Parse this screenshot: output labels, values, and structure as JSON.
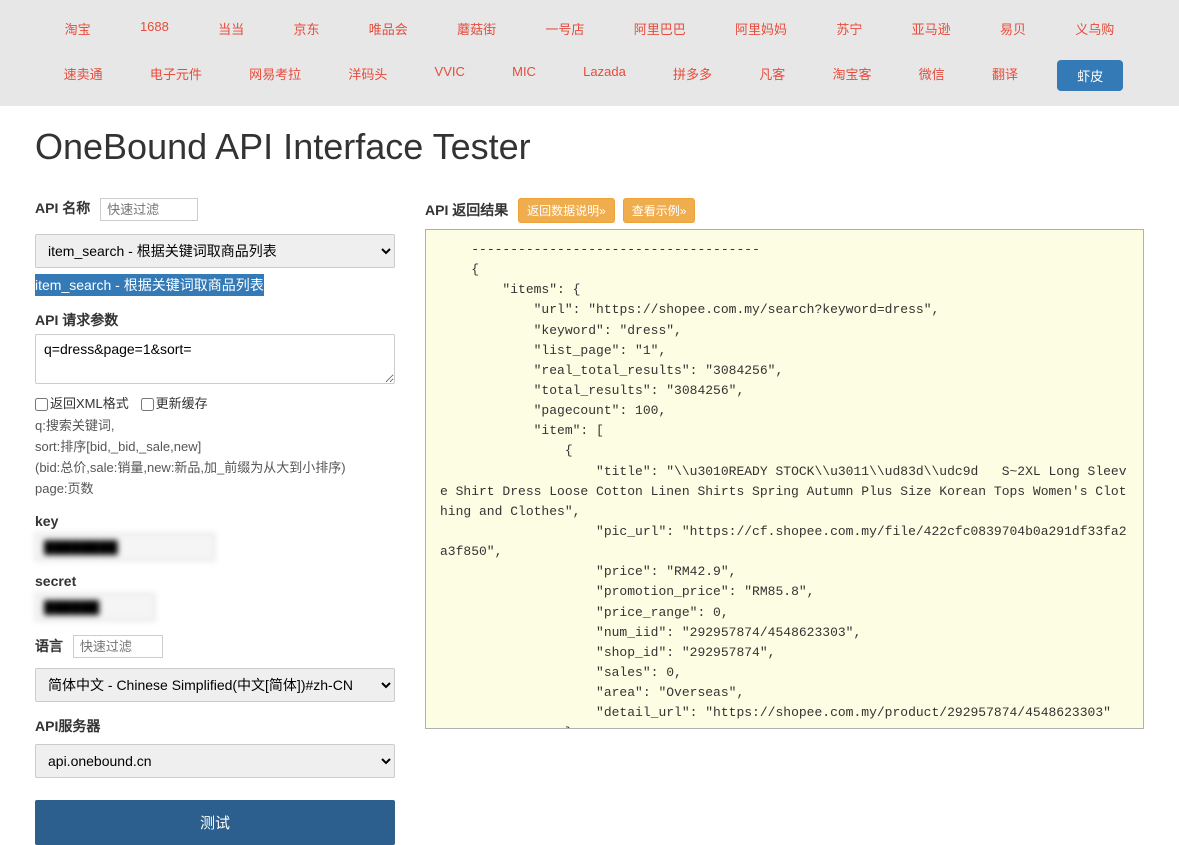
{
  "nav": {
    "row1": [
      "淘宝",
      "1688",
      "当当",
      "京东",
      "唯品会",
      "蘑菇街",
      "一号店",
      "阿里巴巴",
      "阿里妈妈",
      "苏宁",
      "亚马逊",
      "易贝",
      "义乌购"
    ],
    "row2": [
      "速卖通",
      "电子元件",
      "网易考拉",
      "洋码头",
      "VVIC",
      "MIC",
      "Lazada",
      "拼多多",
      "凡客",
      "淘宝客",
      "微信",
      "翻译",
      "虾皮"
    ],
    "active_index": 12
  },
  "title": "OneBound API Interface Tester",
  "form": {
    "api_name_label": "API 名称",
    "api_name_placeholder": "快速过滤",
    "api_select_value": "item_search - 根据关键词取商品列表",
    "highlight_text": "item_search - 根据关键词取商品列表",
    "request_params_label": "API 请求参数",
    "request_params_value": "q=dress&page=1&sort=",
    "checkbox_xml": "返回XML格式",
    "checkbox_cache": "更新缓存",
    "hint_line1": "q:搜索关键词,",
    "hint_line2": "sort:排序[bid,_bid,_sale,new]",
    "hint_line3": "  (bid:总价,sale:销量,new:新品,加_前缀为从大到小排序)",
    "hint_line4": "page:页数",
    "key_label": "key",
    "key_value": "████████",
    "secret_label": "secret",
    "secret_value": "██████",
    "lang_label": "语言",
    "lang_placeholder": "快速过滤",
    "lang_select_value": "简体中文 - Chinese Simplified(中文[简体])#zh-CN",
    "server_label": "API服务器",
    "server_select_value": "api.onebound.cn",
    "test_button": "测试"
  },
  "result": {
    "title": "API 返回结果",
    "btn1": "返回数据说明»",
    "btn2": "查看示例»",
    "json_text": "    -------------------------------------\n    {\n        \"items\": {\n            \"url\": \"https://shopee.com.my/search?keyword=dress\",\n            \"keyword\": \"dress\",\n            \"list_page\": \"1\",\n            \"real_total_results\": \"3084256\",\n            \"total_results\": \"3084256\",\n            \"pagecount\": 100,\n            \"item\": [\n                {\n                    \"title\": \"\\\\u3010READY STOCK\\\\u3011\\\\ud83d\\\\udc9d   S~2XL Long Sleeve Shirt Dress Loose Cotton Linen Shirts Spring Autumn Plus Size Korean Tops Women's Clothing and Clothes\",\n                    \"pic_url\": \"https://cf.shopee.com.my/file/422cfc0839704b0a291df33fa2a3f850\",\n                    \"price\": \"RM42.9\",\n                    \"promotion_price\": \"RM85.8\",\n                    \"price_range\": 0,\n                    \"num_iid\": \"292957874/4548623303\",\n                    \"shop_id\": \"292957874\",\n                    \"sales\": 0,\n                    \"area\": \"Overseas\",\n                    \"detail_url\": \"https://shopee.com.my/product/292957874/4548623303\"\n                },\n                {\n                    \"title\": \"New cheongsam dress red retro printing long composite lace fabric surface texture"
  }
}
